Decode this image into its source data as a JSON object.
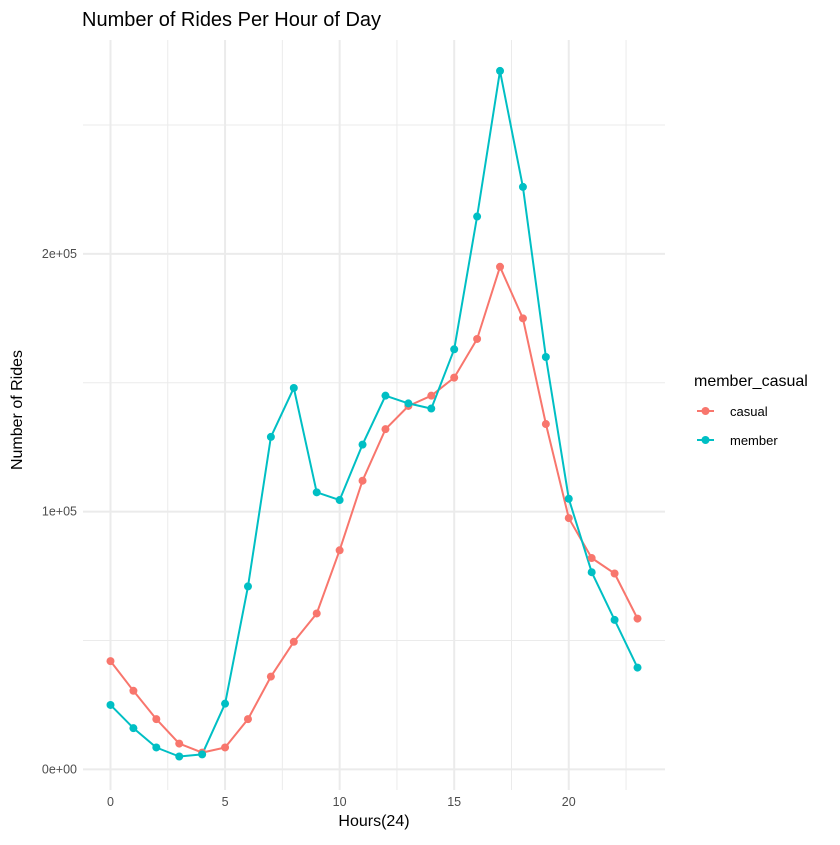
{
  "chart_data": {
    "type": "line",
    "title": "Number of Rides Per Hour of Day",
    "xlabel": "Hours(24)",
    "ylabel": "Number of Rides",
    "xlim": [
      -1.2,
      24.2
    ],
    "ylim": [
      -8000,
      283000
    ],
    "x_major_ticks": [
      0,
      5,
      10,
      15,
      20
    ],
    "x_minor_ticks": [
      2.5,
      7.5,
      12.5,
      17.5,
      22.5
    ],
    "y_major_ticks": [
      0,
      100000,
      200000
    ],
    "y_minor_ticks": [
      50000,
      150000,
      250000
    ],
    "y_tick_labels": [
      "0e+00",
      "1e+05",
      "2e+05"
    ],
    "x_tick_labels": [
      "0",
      "5",
      "10",
      "15",
      "20"
    ],
    "grid": true,
    "legend": {
      "title": "member_casual",
      "placement": "right"
    },
    "x": [
      0,
      1,
      2,
      3,
      4,
      5,
      6,
      7,
      8,
      9,
      10,
      11,
      12,
      13,
      14,
      15,
      16,
      17,
      18,
      19,
      20,
      21,
      22,
      23
    ],
    "series": [
      {
        "name": "casual",
        "color": "#F8766D",
        "values": [
          42000,
          30500,
          19500,
          10000,
          6500,
          8500,
          19500,
          36000,
          49500,
          60500,
          85000,
          112000,
          132000,
          141000,
          145000,
          152000,
          167000,
          195000,
          175000,
          134000,
          97500,
          82000,
          76000,
          58500
        ]
      },
      {
        "name": "member",
        "color": "#00BFC4",
        "values": [
          25000,
          16000,
          8500,
          5000,
          5800,
          25500,
          71000,
          129000,
          148000,
          107500,
          104500,
          126000,
          145000,
          142000,
          140000,
          163000,
          214500,
          271000,
          226000,
          160000,
          105000,
          76500,
          58000,
          39500
        ]
      }
    ]
  }
}
